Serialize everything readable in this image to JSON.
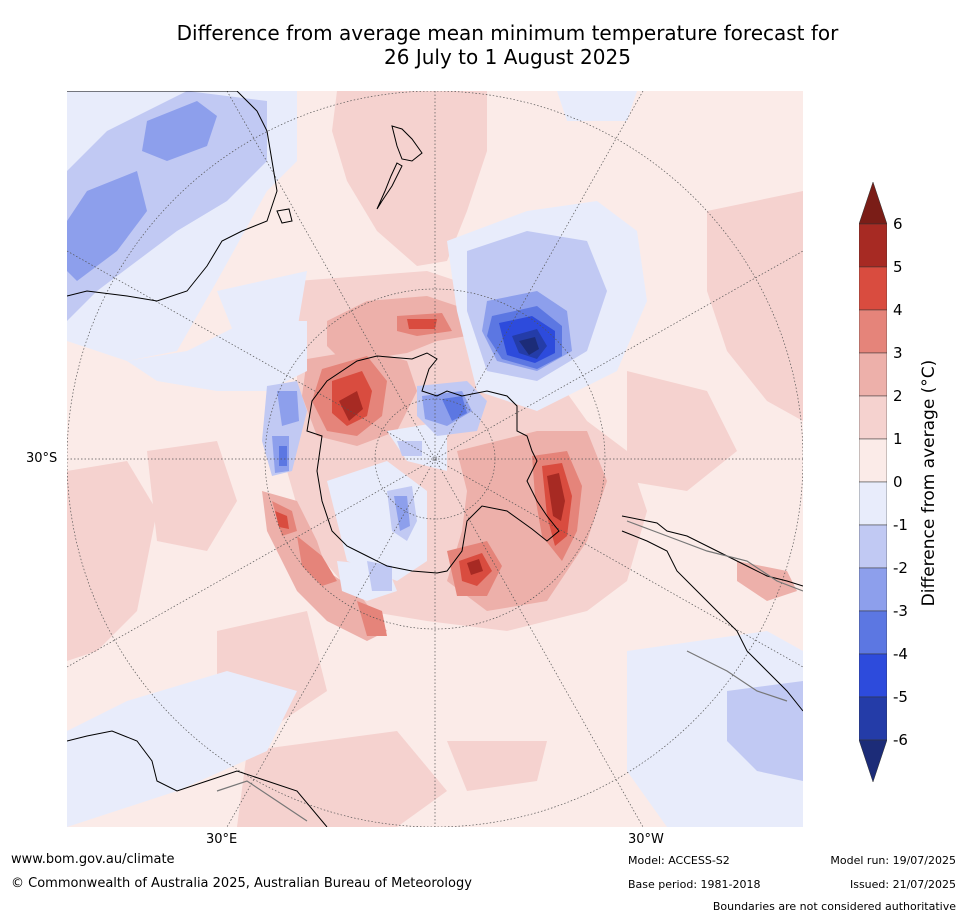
{
  "title": {
    "line1": "Difference from average mean minimum temperature forecast for",
    "line2": "26 July to 1 August 2025"
  },
  "map": {
    "projection": "south-polar",
    "lat_label_left": "30°S",
    "lon_label_left": "30°E",
    "lon_label_right": "30°W"
  },
  "colorbar": {
    "title": "Difference from average (°C)",
    "ticks": [
      "6",
      "5",
      "4",
      "3",
      "2",
      "1",
      "0",
      "-1",
      "-2",
      "-3",
      "-4",
      "-5",
      "-6"
    ],
    "colors": {
      "above_6": "#7a1d17",
      "5_to_6": "#a72a23",
      "4_to_5": "#d94c3f",
      "3_to_4": "#e5847a",
      "2_to_3": "#edb0aa",
      "1_to_2": "#f5d2cf",
      "0_to_1": "#fbebe8",
      "m1_to_0": "#e8ecfb",
      "m2_to_m1": "#c1c9f3",
      "m3_to_m2": "#8d9fec",
      "m4_to_m3": "#5c77e2",
      "m5_to_m4": "#2d4bdc",
      "m6_to_m5": "#243ca8",
      "below_m6": "#1c2c78"
    }
  },
  "footer": {
    "website": "www.bom.gov.au/climate",
    "copyright": "© Commonwealth of Australia 2025, Australian Bureau of Meteorology",
    "model": "Model: ACCESS-S2",
    "base_period": "Base period: 1981-2018",
    "model_run": "Model run: 19/07/2025",
    "issued": "Issued: 21/07/2025",
    "disclaimer": "Boundaries are not considered authoritative"
  }
}
